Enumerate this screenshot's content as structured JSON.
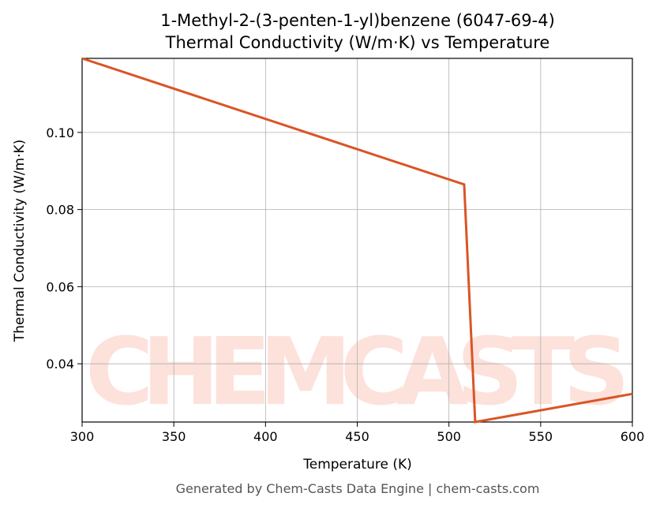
{
  "chart_data": {
    "type": "line",
    "title": "1-Methyl-2-(3-penten-1-yl)benzene (6047-69-4)",
    "subtitle": "Thermal Conductivity (W/m·K) vs Temperature",
    "x_label": "Temperature (K)",
    "y_label": "Thermal Conductivity (W/m·K)",
    "footer": "Generated by Chem-Casts Data Engine | chem-casts.com",
    "watermark": "CHEMCASTS",
    "x": [
      300,
      508.3,
      514.3,
      600
    ],
    "series": [
      {
        "name": "Thermal Conductivity",
        "color": "#d95525",
        "values": [
          0.1192,
          0.0865,
          0.0249,
          0.0322
        ]
      }
    ],
    "xlim": [
      300,
      600
    ],
    "xticks": [
      300,
      350,
      400,
      450,
      500,
      550,
      600
    ],
    "ylim": [
      0.0249,
      0.1192
    ],
    "yticks": [
      0.04,
      0.06,
      0.08,
      {
        "value": 0.1,
        "label": "0.10"
      }
    ],
    "grid": true
  }
}
